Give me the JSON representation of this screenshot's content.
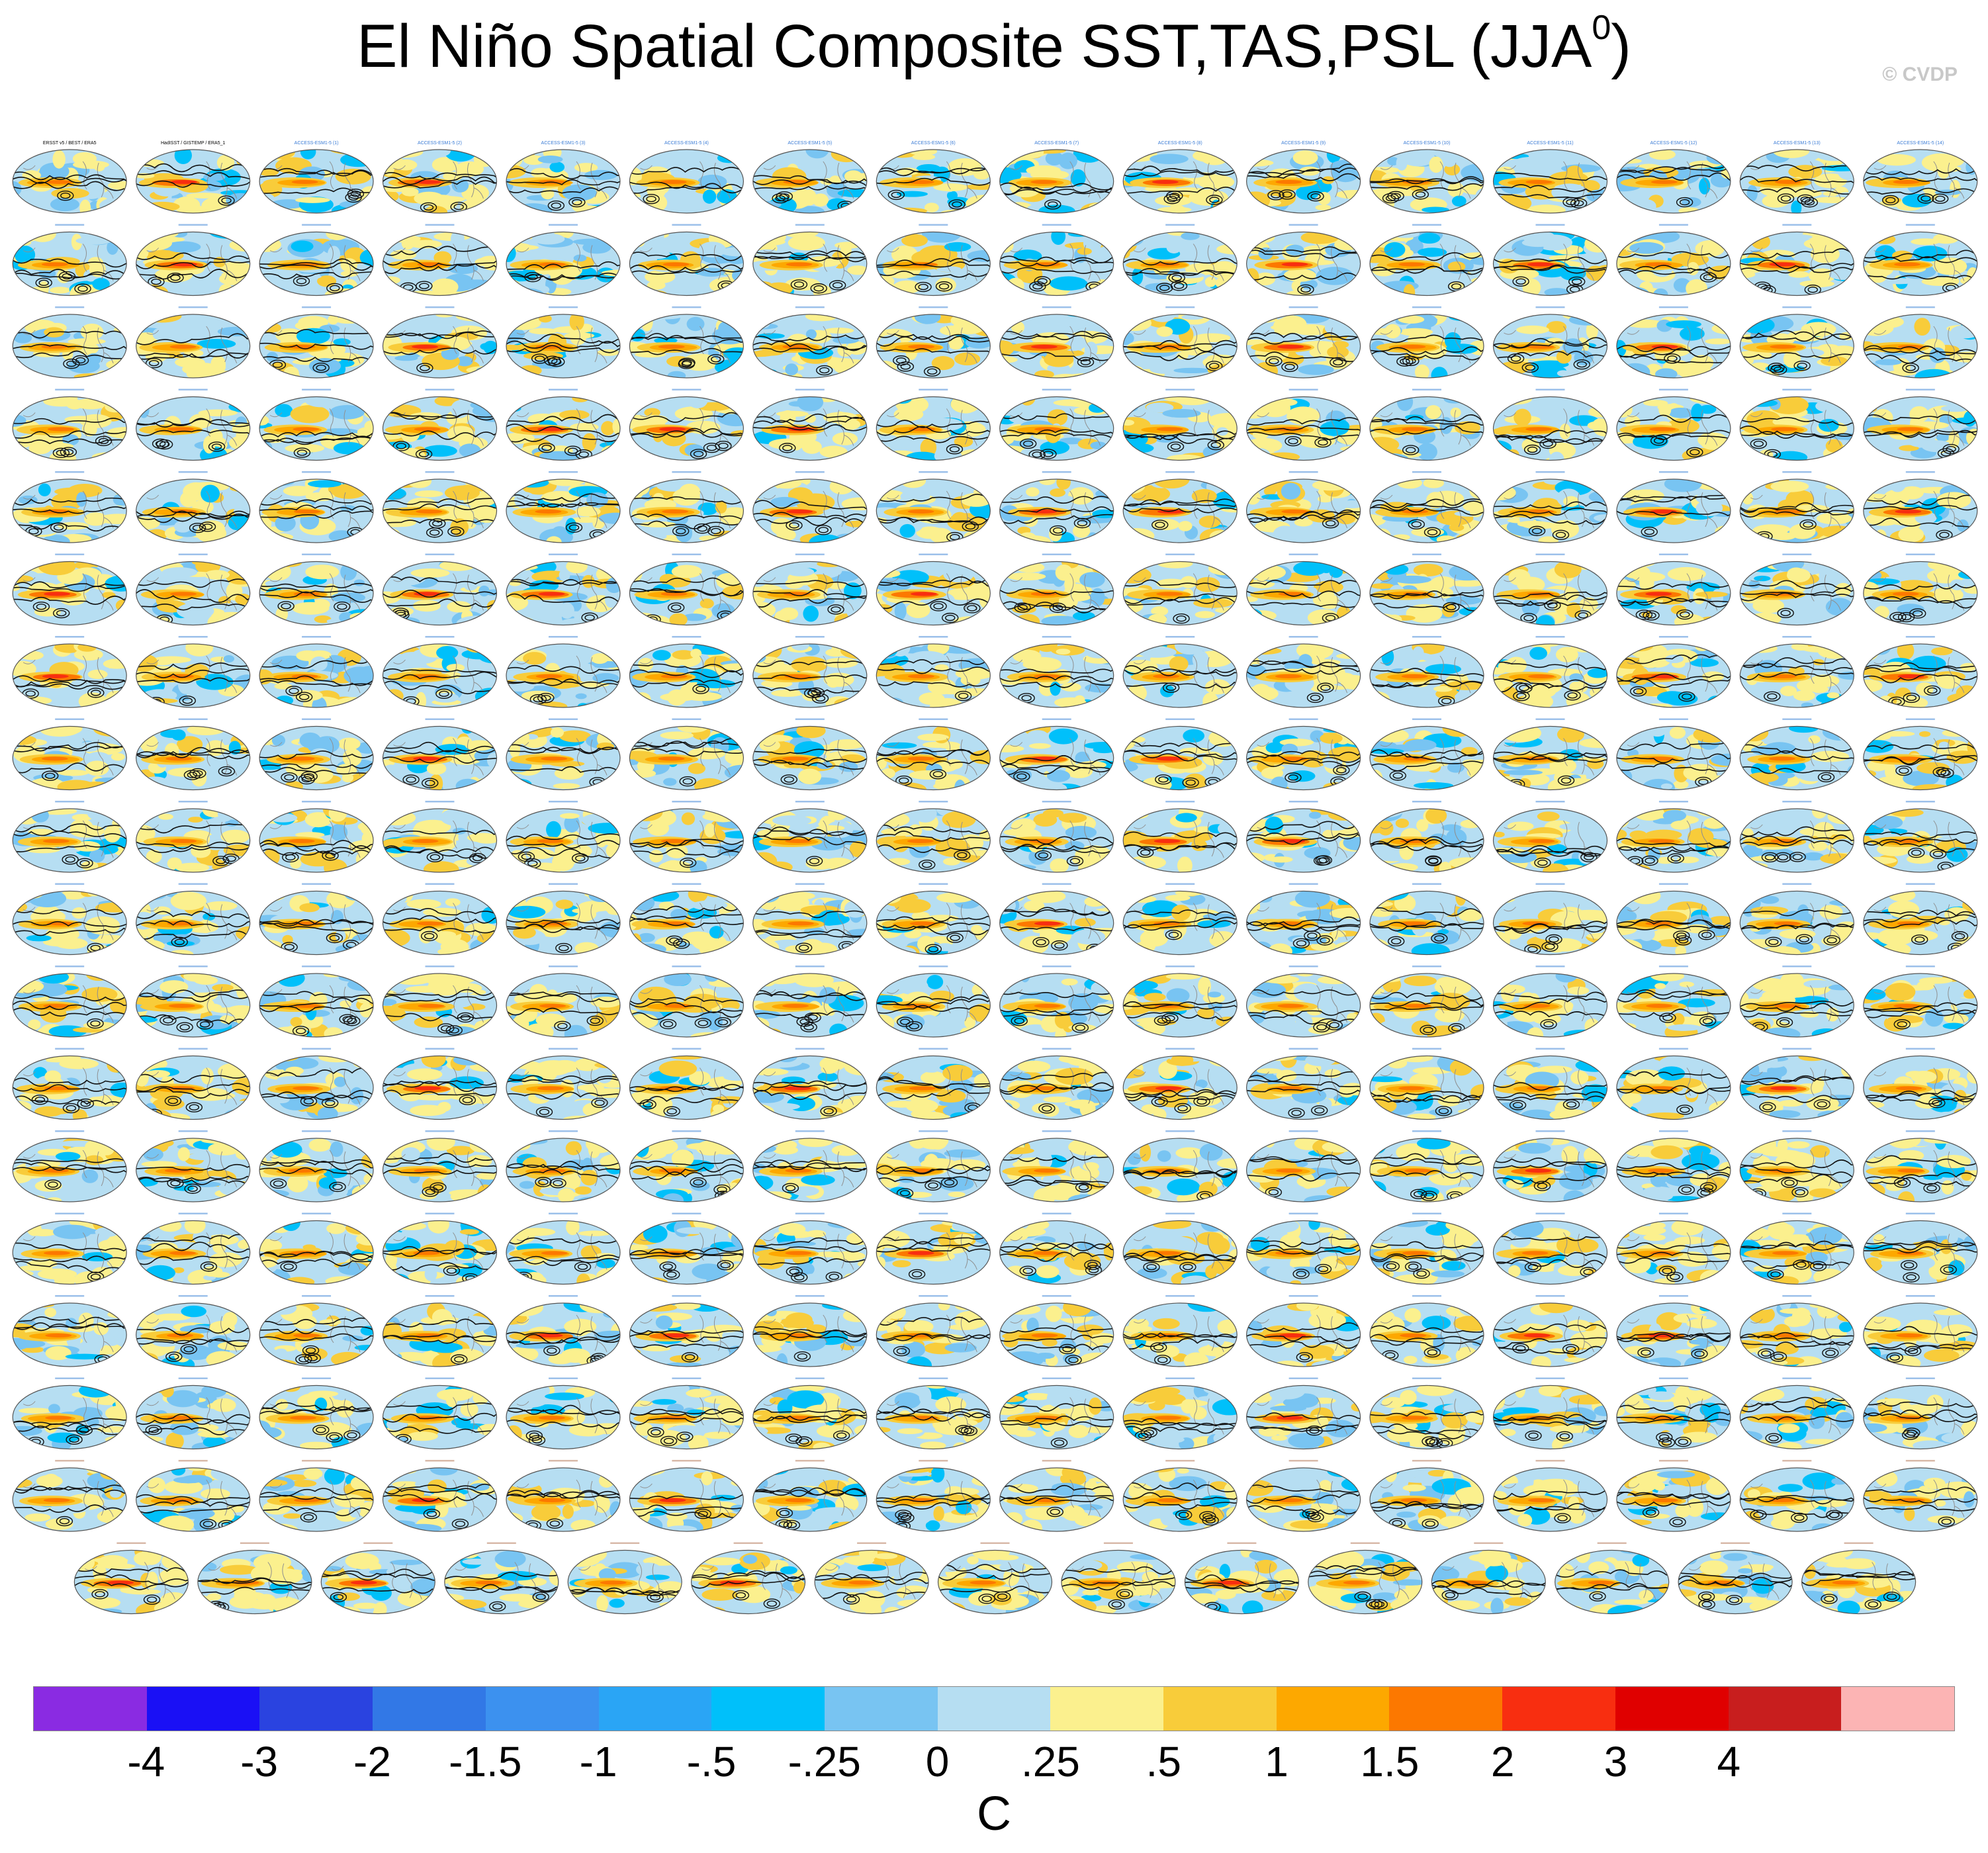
{
  "title": {
    "main": "El Niño Spatial Composite SST,TAS,PSL (JJA",
    "superscript": "0",
    "close": ")"
  },
  "copyright": "© CVDP",
  "panel_titles": {
    "row1": [
      "ERSST v5 / BEST / ERA5",
      "HadISST / GISTEMP / ERA5_1",
      "ACCESS-ESM1-5 (1)",
      "ACCESS-ESM1-5 (2)",
      "ACCESS-ESM1-5 (3)",
      "ACCESS-ESM1-5 (4)",
      "ACCESS-ESM1-5 (5)",
      "ACCESS-ESM1-5 (6)",
      "ACCESS-ESM1-5 (7)",
      "ACCESS-ESM1-5 (8)",
      "ACCESS-ESM1-5 (9)",
      "ACCESS-ESM1-5 (10)",
      "ACCESS-ESM1-5 (11)",
      "ACCESS-ESM1-5 (12)",
      "ACCESS-ESM1-5 (13)",
      "ACCESS-ESM1-5 (14)"
    ]
  },
  "chart_data": {
    "type": "heatmap",
    "title": "El Niño Spatial Composite SST,TAS,PSL (JJA0)",
    "variables": [
      "SST",
      "TAS",
      "PSL"
    ],
    "season": "JJA0",
    "layout": {
      "rows": 18,
      "cols": 16,
      "last_row_panels": 15
    },
    "projection": "global map panels (Robinson-like ellipse)",
    "fill": "SST/TAS composite anomaly (shaded)",
    "contours": "PSL composite anomaly (black contour lines)",
    "colorbar": {
      "units": "C",
      "tick_labels": [
        "-4",
        "-3",
        "-2",
        "-1.5",
        "-1",
        "-.5",
        "-.25",
        "0",
        ".25",
        ".5",
        "1",
        "1.5",
        "2",
        "3",
        "4"
      ],
      "levels": [
        -4,
        -3,
        -2,
        -1.5,
        -1,
        -0.5,
        -0.25,
        0,
        0.25,
        0.5,
        1,
        1.5,
        2,
        3,
        4
      ],
      "colors": [
        "#8a2be2",
        "#1a10f5",
        "#2a43e0",
        "#3278e6",
        "#3c91ef",
        "#2aa5f5",
        "#00c0fa",
        "#78c4f2",
        "#b6def2",
        "#fbf08e",
        "#f8cc3a",
        "#fda800",
        "#fc7800",
        "#f82e10",
        "#e00000",
        "#c81e1e",
        "#fcb4b4"
      ],
      "orientation": "horizontal",
      "position": "bottom"
    }
  }
}
